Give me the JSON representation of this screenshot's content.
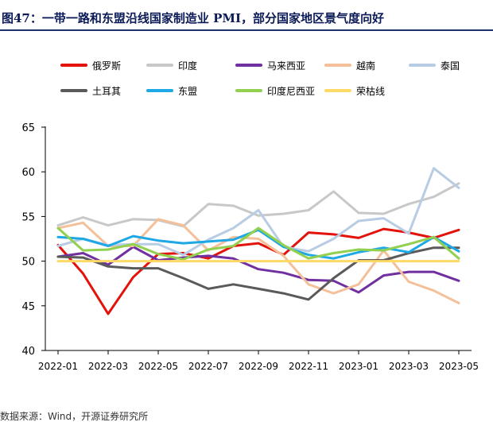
{
  "figure": {
    "title": "图47：一带一路和东盟沿线国家制造业 PMI，部分国家地区景气度向好",
    "source": "数据来源：Wind，开源证券研究所"
  },
  "chart_data": {
    "type": "line",
    "title": "",
    "xlabel": "",
    "ylabel": "",
    "ylim": [
      40,
      65
    ],
    "yticks": [
      "40",
      "45",
      "50",
      "55",
      "60",
      "65"
    ],
    "xticks": [
      "2022-01",
      "2022-03",
      "2022-05",
      "2022-07",
      "2022-09",
      "2022-11",
      "2023-01",
      "2023-03",
      "2023-05"
    ],
    "categories": [
      "2022-01",
      "2022-02",
      "2022-03",
      "2022-04",
      "2022-05",
      "2022-06",
      "2022-07",
      "2022-08",
      "2022-09",
      "2022-10",
      "2022-11",
      "2022-12",
      "2023-01",
      "2023-02",
      "2023-03",
      "2023-04",
      "2023-05"
    ],
    "grid": false,
    "legend_position": "top",
    "series": [
      {
        "name": "俄罗斯",
        "color": "#e3120b",
        "values": [
          51.8,
          48.6,
          44.1,
          48.2,
          50.8,
          50.9,
          50.3,
          51.7,
          52.0,
          50.7,
          53.2,
          53.0,
          52.6,
          53.6,
          53.2,
          52.6,
          53.5
        ]
      },
      {
        "name": "印度",
        "color": "#c8c8c8",
        "values": [
          54.0,
          54.9,
          54.0,
          54.7,
          54.6,
          53.9,
          56.4,
          56.2,
          55.1,
          55.3,
          55.7,
          57.8,
          55.4,
          55.3,
          56.4,
          57.2,
          58.7
        ]
      },
      {
        "name": "马来西亚",
        "color": "#7030a0",
        "values": [
          50.5,
          50.9,
          49.6,
          51.6,
          50.1,
          50.4,
          50.6,
          50.3,
          49.1,
          48.7,
          47.9,
          47.8,
          46.5,
          48.4,
          48.8,
          48.8,
          47.8
        ]
      },
      {
        "name": "越南",
        "color": "#f4c09a",
        "values": [
          53.7,
          54.3,
          51.7,
          51.7,
          54.7,
          54.0,
          51.2,
          52.7,
          52.5,
          50.6,
          47.4,
          46.4,
          47.4,
          51.2,
          47.7,
          46.7,
          45.3
        ]
      },
      {
        "name": "泰国",
        "color": "#b8cce4",
        "values": [
          51.7,
          52.5,
          51.8,
          51.9,
          51.9,
          50.7,
          52.4,
          53.7,
          55.7,
          51.6,
          51.1,
          52.5,
          54.5,
          54.8,
          53.1,
          60.4,
          58.2
        ]
      },
      {
        "name": "土耳其",
        "color": "#5a5a5a",
        "values": [
          50.5,
          50.4,
          49.4,
          49.2,
          49.2,
          48.1,
          46.9,
          47.4,
          46.9,
          46.4,
          45.7,
          48.1,
          50.1,
          50.1,
          50.9,
          51.5,
          51.5
        ]
      },
      {
        "name": "东盟",
        "color": "#1ea8e6",
        "values": [
          52.7,
          52.5,
          51.7,
          52.8,
          52.3,
          52.0,
          52.2,
          52.4,
          53.5,
          51.6,
          50.7,
          50.3,
          51.0,
          51.5,
          51.0,
          52.7,
          51.1
        ]
      },
      {
        "name": "印度尼西亚",
        "color": "#92d050",
        "values": [
          53.7,
          51.2,
          51.3,
          51.9,
          50.8,
          50.2,
          51.3,
          51.7,
          53.7,
          51.8,
          50.3,
          50.9,
          51.3,
          51.2,
          51.9,
          52.7,
          50.3
        ]
      },
      {
        "name": "荣枯线",
        "color": "#ffd966",
        "values": [
          50,
          50,
          50,
          50,
          50,
          50,
          50,
          50,
          50,
          50,
          50,
          50,
          50,
          50,
          50,
          50,
          50
        ]
      }
    ]
  }
}
